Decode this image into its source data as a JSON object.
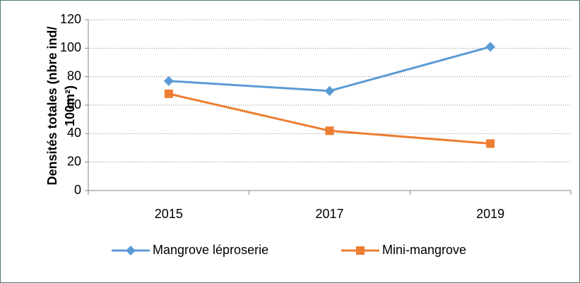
{
  "chart_data": {
    "type": "line",
    "ylabel": [
      "Densités totales (nbre ind/",
      "100m²)"
    ],
    "categories": [
      "2015",
      "2017",
      "2019"
    ],
    "series": [
      {
        "name": "Mangrove léproserie",
        "color": "#5b9bd5",
        "marker": "diamond",
        "values": [
          77,
          70,
          101
        ]
      },
      {
        "name": "Mini-mangrove",
        "color": "#ed7d31",
        "marker": "square",
        "values": [
          68,
          42,
          33
        ]
      }
    ],
    "ylim": [
      0,
      120
    ],
    "yticks": [
      0,
      20,
      40,
      60,
      80,
      100,
      120
    ],
    "grid": true,
    "legend": "bottom"
  }
}
